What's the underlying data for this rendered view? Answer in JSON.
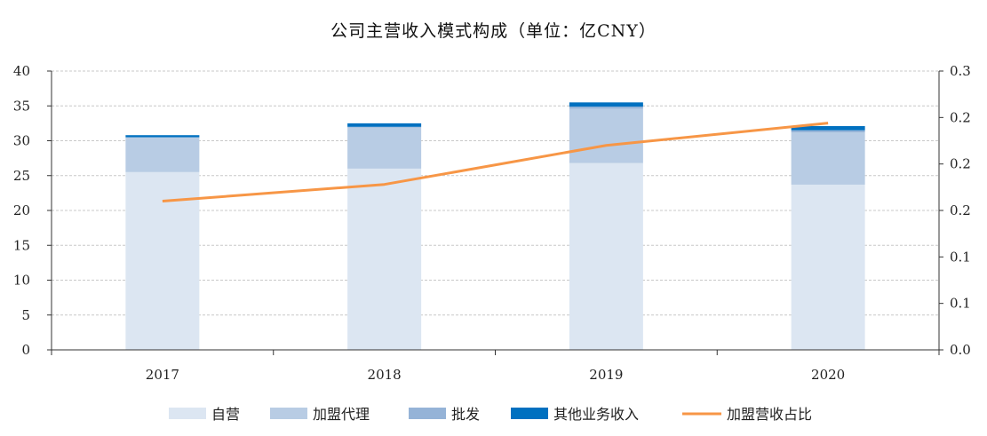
{
  "chart_data": {
    "type": "bar",
    "title": "公司主营收入模式构成（单位：亿CNY）",
    "categories": [
      "2017",
      "2018",
      "2019",
      "2020"
    ],
    "stacked": true,
    "series": [
      {
        "name": "自营",
        "type": "bar",
        "axis": "left",
        "values": [
          25.5,
          26.0,
          26.8,
          23.7
        ],
        "color": "#dce6f2"
      },
      {
        "name": "加盟代理",
        "type": "bar",
        "axis": "left",
        "values": [
          5.0,
          5.9,
          7.8,
          7.5
        ],
        "color": "#b8cce4"
      },
      {
        "name": "批发",
        "type": "bar",
        "axis": "left",
        "values": [
          0.0,
          0.1,
          0.3,
          0.3
        ],
        "color": "#95b3d7"
      },
      {
        "name": "其他业务收入",
        "type": "bar",
        "axis": "left",
        "values": [
          0.3,
          0.5,
          0.6,
          0.6
        ],
        "color": "#0070c0"
      },
      {
        "name": "加盟营收占比",
        "type": "line",
        "axis": "right",
        "values": [
          0.16,
          0.178,
          0.22,
          0.244
        ],
        "color": "#f79646"
      }
    ],
    "ylim": [
      0,
      40
    ],
    "y_ticks": [
      "0",
      "5",
      "10",
      "15",
      "20",
      "25",
      "30",
      "35",
      "40"
    ],
    "y2lim": [
      0.0,
      0.3
    ],
    "y2_ticks": [
      "0.0",
      "0.1",
      "0.1",
      "0.2",
      "0.2",
      "0.2",
      "0.3"
    ],
    "grid": true,
    "legend_position": "bottom"
  }
}
